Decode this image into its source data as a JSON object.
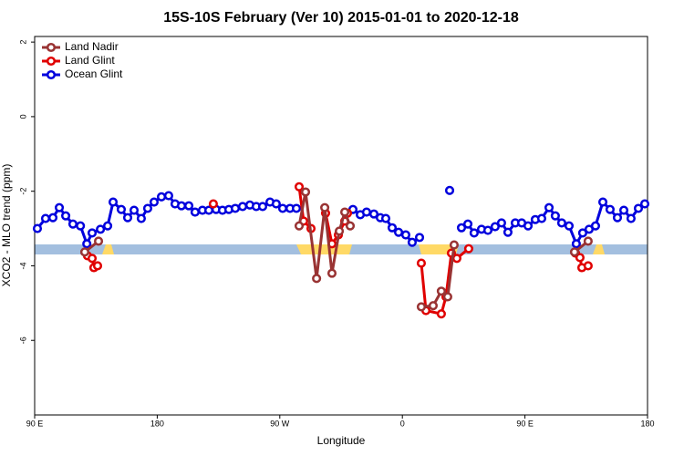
{
  "chart_data": {
    "type": "line",
    "title": "15S-10S February (Ver 10)   2015-01-01 to 2020-12-18",
    "x_label": "Longitude",
    "y_label": "XCO2 - MLO trend (ppm)",
    "xlim": [
      90,
      540
    ],
    "ylim": [
      -8,
      2.15
    ],
    "xticks": [
      {
        "value": 90,
        "label": "90 E"
      },
      {
        "value": 180,
        "label": "180"
      },
      {
        "value": 270,
        "label": "90 W"
      },
      {
        "value": 360,
        "label": "0"
      },
      {
        "value": 450,
        "label": "90 E"
      },
      {
        "value": 540,
        "label": "180"
      }
    ],
    "yticks": [
      2,
      0,
      -2,
      -4,
      -6
    ],
    "legend": "top-left",
    "series": [
      {
        "name": "Land Nadir",
        "color": "#993333",
        "x": [
          126.8,
          136.9,
          null,
          284.2,
          288.9,
          297.0,
          303.0,
          308.3,
          313.7,
          317.7,
          321.7,
          null,
          373.9,
          382.6,
          388.6,
          393.3,
          398.0,
          null,
          486.4,
          496.4
        ],
        "values": [
          -3.63,
          -3.34,
          null,
          -2.93,
          -2.02,
          -4.34,
          -2.44,
          -4.2,
          -3.07,
          -2.56,
          -2.93,
          null,
          -5.1,
          -5.07,
          -4.68,
          -4.83,
          -3.44,
          null,
          -3.63,
          -3.34
        ]
      },
      {
        "name": "Land Glint",
        "color": "#e00000",
        "x": [
          128.8,
          132.2,
          133.5,
          136.2,
          null,
          221.2,
          null,
          284.2,
          287.5,
          292.9,
          null,
          303.6,
          308.3,
          313.0,
          317.7,
          319.7,
          null,
          373.9,
          377.3,
          388.6,
          392.0,
          396.0,
          400.0,
          408.7,
          null,
          487.1,
          490.4,
          491.8,
          496.4
        ],
        "values": [
          -3.73,
          -3.8,
          -4.05,
          -4.0,
          null,
          -2.34,
          null,
          -1.88,
          -2.8,
          -3.0,
          null,
          -2.59,
          -3.41,
          -3.17,
          -2.8,
          -2.59,
          null,
          -3.93,
          -5.2,
          -5.29,
          -4.83,
          -3.66,
          -3.8,
          -3.54,
          null,
          -3.66,
          -3.78,
          -4.05,
          -4.0
        ]
      },
      {
        "name": "Ocean Glint",
        "color": "#0000dd",
        "x": [
          92.0,
          98.0,
          103.4,
          108.1,
          112.8,
          118.1,
          123.6,
          128.3,
          132.2,
          138.3,
          143.6,
          147.6,
          153.6,
          158.3,
          163.0,
          168.3,
          173.0,
          177.7,
          183.1,
          188.4,
          193.1,
          197.8,
          203.2,
          207.8,
          213.2,
          217.9,
          223.2,
          227.9,
          232.6,
          237.3,
          242.7,
          248.0,
          252.7,
          257.4,
          262.8,
          267.4,
          272.1,
          277.5,
          282.2,
          null,
          323.7,
          329.1,
          333.7,
          339.1,
          343.8,
          347.8,
          352.5,
          357.2,
          362.5,
          367.2,
          372.6,
          null,
          394.7,
          null,
          403.4,
          408.1,
          412.7,
          418.1,
          422.8,
          428.1,
          432.8,
          437.5,
          442.9,
          447.6,
          452.3,
          457.6,
          462.3,
          467.7,
          472.3,
          477.0,
          482.4,
          487.7,
          492.4,
          497.1,
          501.8,
          507.2,
          512.5,
          517.9,
          522.6,
          527.9,
          533.3,
          538.0
        ],
        "values": [
          -3.0,
          -2.73,
          -2.71,
          -2.44,
          -2.66,
          -2.88,
          -2.93,
          -3.41,
          -3.12,
          -3.02,
          -2.93,
          -2.29,
          -2.49,
          -2.71,
          -2.51,
          -2.73,
          -2.46,
          -2.29,
          -2.15,
          -2.12,
          -2.34,
          -2.39,
          -2.39,
          -2.56,
          -2.51,
          -2.51,
          -2.49,
          -2.51,
          -2.49,
          -2.46,
          -2.41,
          -2.37,
          -2.41,
          -2.41,
          -2.29,
          -2.34,
          -2.46,
          -2.46,
          -2.46,
          null,
          -2.49,
          -2.63,
          -2.56,
          -2.61,
          -2.71,
          -2.73,
          -2.98,
          -3.1,
          -3.17,
          -3.37,
          -3.24,
          null,
          -1.98,
          null,
          -2.98,
          -2.88,
          -3.12,
          -3.02,
          -3.05,
          -2.95,
          -2.85,
          -3.1,
          -2.85,
          -2.85,
          -2.93,
          -2.76,
          -2.73,
          -2.44,
          -2.66,
          -2.85,
          -2.93,
          -3.41,
          -3.12,
          -3.02,
          -2.93,
          -2.29,
          -2.49,
          -2.71,
          -2.51,
          -2.73,
          -2.46,
          -2.34
        ]
      }
    ]
  }
}
